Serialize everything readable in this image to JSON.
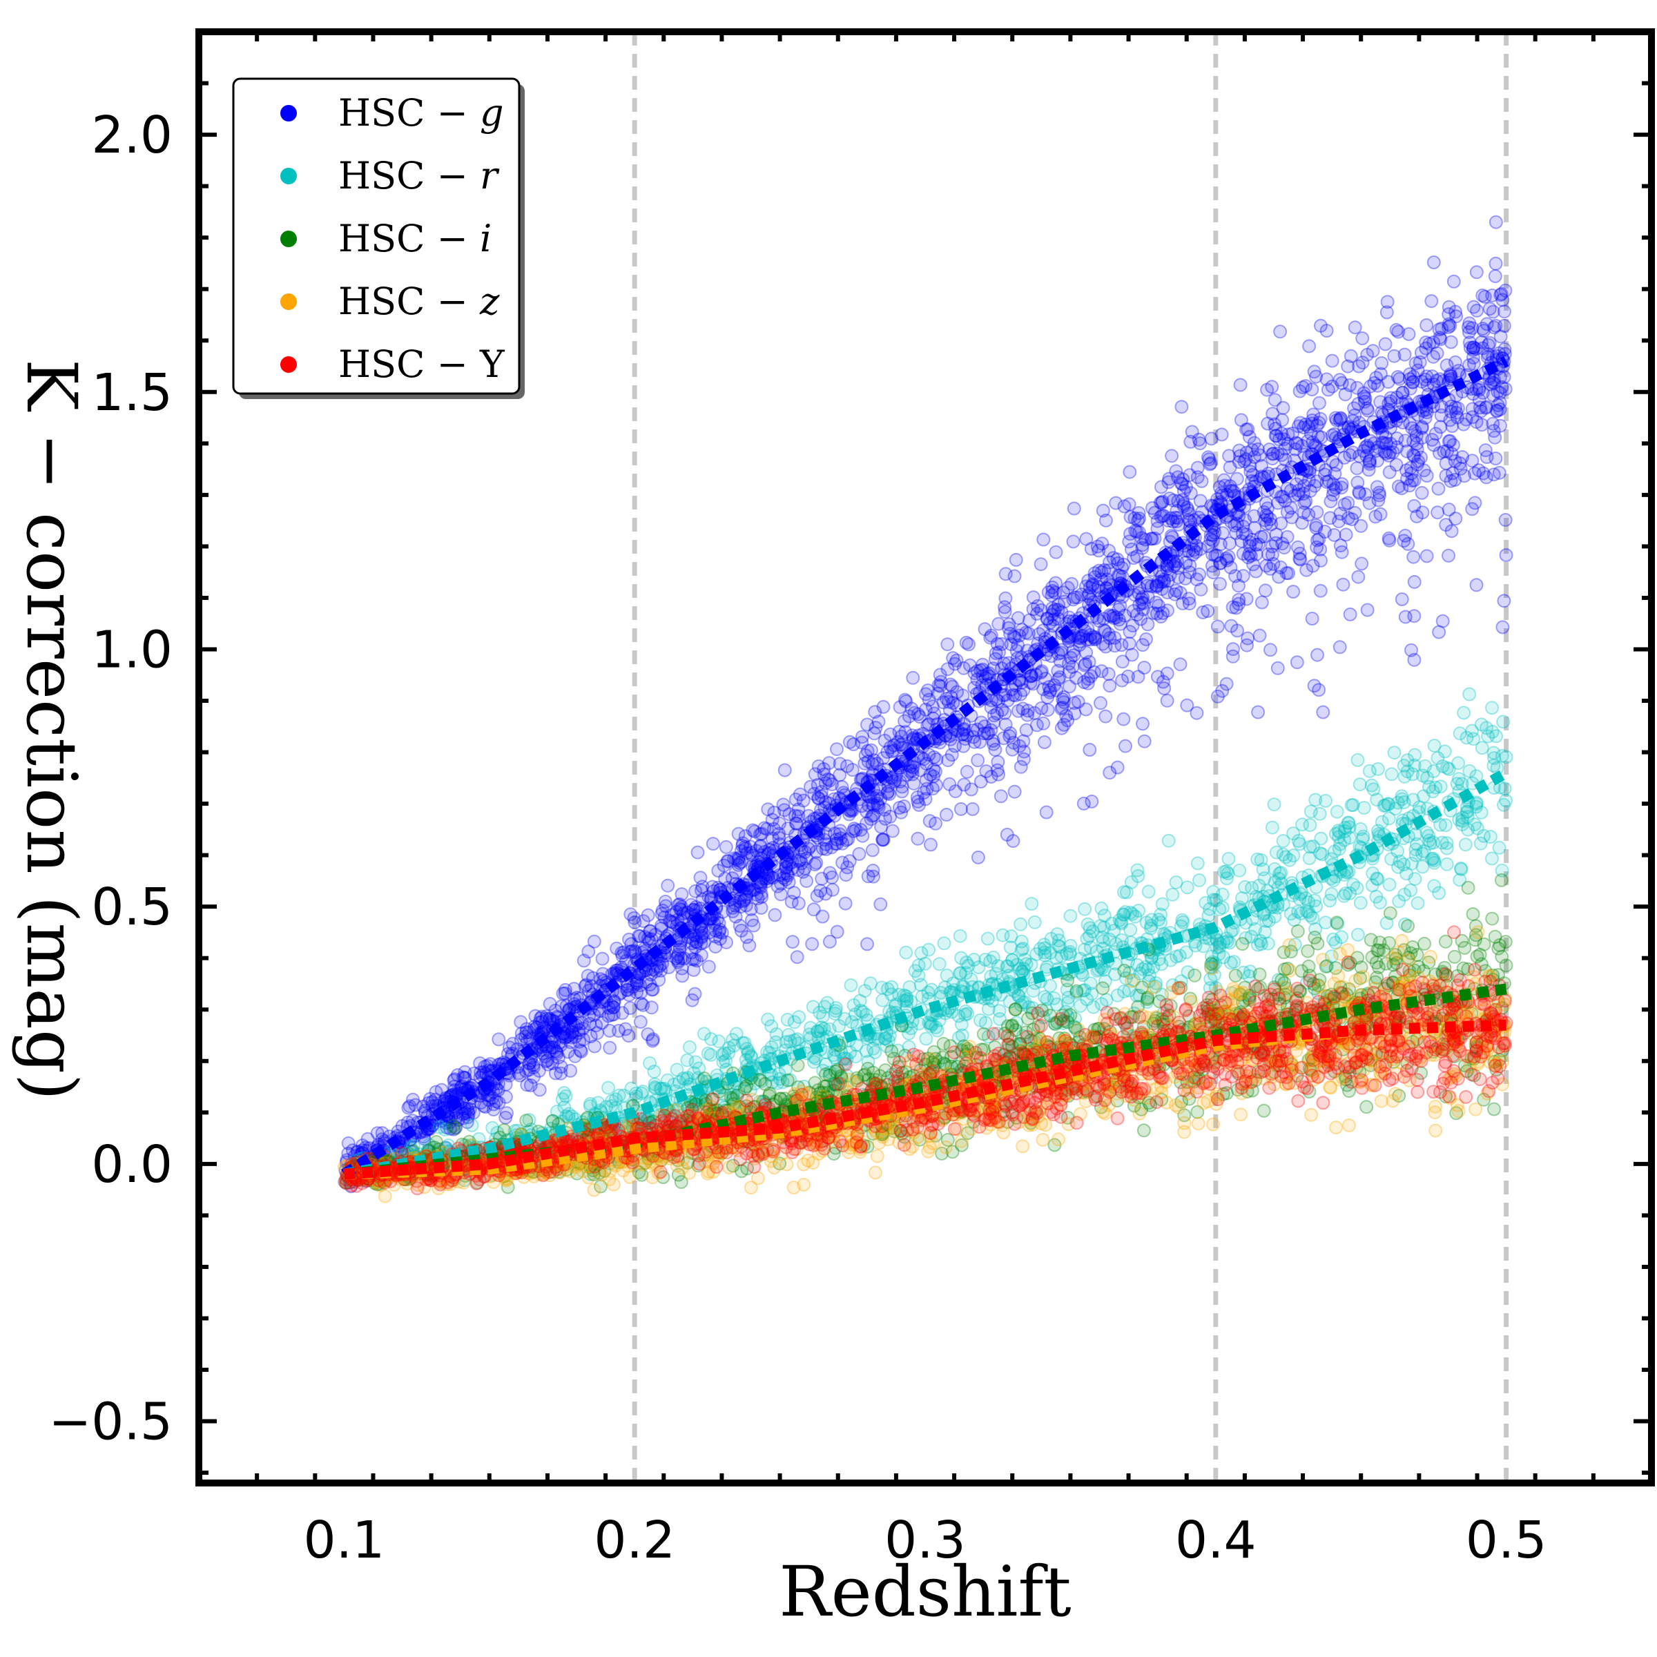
{
  "chart_data": {
    "type": "scatter",
    "title": "",
    "xlabel": "Redshift",
    "ylabel": "K − correction (mag)",
    "xlim": [
      0.05,
      0.55
    ],
    "ylim": [
      -0.62,
      2.2
    ],
    "xticks": [
      0.1,
      0.2,
      0.3,
      0.4,
      0.5
    ],
    "xtick_labels": [
      "0.1",
      "0.2",
      "0.3",
      "0.4",
      "0.5"
    ],
    "yticks": [
      -0.5,
      0.0,
      0.5,
      1.0,
      1.5,
      2.0
    ],
    "ytick_labels": [
      "−0.5",
      "0.0",
      "0.5",
      "1.0",
      "1.5",
      "2.0"
    ],
    "vertical_reference_lines": [
      0.2,
      0.4,
      0.5
    ],
    "grid": false,
    "legend_position": "top-left",
    "series": [
      {
        "name": "HSC − g",
        "legend_main": "HSC − ",
        "legend_band": "g",
        "color": "#0000ff",
        "trend_x": [
          0.1,
          0.15,
          0.2,
          0.25,
          0.3,
          0.35,
          0.4,
          0.45,
          0.5
        ],
        "trend_y": [
          -0.02,
          0.16,
          0.38,
          0.6,
          0.82,
          1.04,
          1.26,
          1.42,
          1.56
        ]
      },
      {
        "name": "HSC − r",
        "legend_main": "HSC − ",
        "legend_band": "r",
        "color": "#00bfbf",
        "trend_x": [
          0.1,
          0.15,
          0.2,
          0.25,
          0.3,
          0.35,
          0.4,
          0.45,
          0.5
        ],
        "trend_y": [
          -0.02,
          0.03,
          0.1,
          0.2,
          0.3,
          0.38,
          0.46,
          0.6,
          0.76
        ]
      },
      {
        "name": "HSC − i",
        "legend_main": "HSC − ",
        "legend_band": "i",
        "color": "#008000",
        "trend_x": [
          0.1,
          0.15,
          0.2,
          0.25,
          0.3,
          0.35,
          0.4,
          0.45,
          0.5
        ],
        "trend_y": [
          -0.02,
          0.01,
          0.04,
          0.1,
          0.15,
          0.21,
          0.25,
          0.3,
          0.34
        ]
      },
      {
        "name": "HSC − z",
        "legend_main": "HSC − ",
        "legend_band": "z",
        "color": "#ffa500",
        "trend_x": [
          0.1,
          0.15,
          0.2,
          0.25,
          0.3,
          0.35,
          0.4,
          0.45,
          0.5
        ],
        "trend_y": [
          -0.02,
          -0.01,
          0.03,
          0.06,
          0.11,
          0.17,
          0.23,
          0.26,
          0.27
        ]
      },
      {
        "name": "HSC − Y",
        "legend_main": "HSC − Y",
        "legend_band": "",
        "color": "#ff0000",
        "trend_x": [
          0.1,
          0.15,
          0.2,
          0.25,
          0.3,
          0.35,
          0.4,
          0.45,
          0.5
        ],
        "trend_y": [
          -0.02,
          0.0,
          0.05,
          0.07,
          0.12,
          0.18,
          0.24,
          0.26,
          0.27
        ]
      }
    ]
  }
}
